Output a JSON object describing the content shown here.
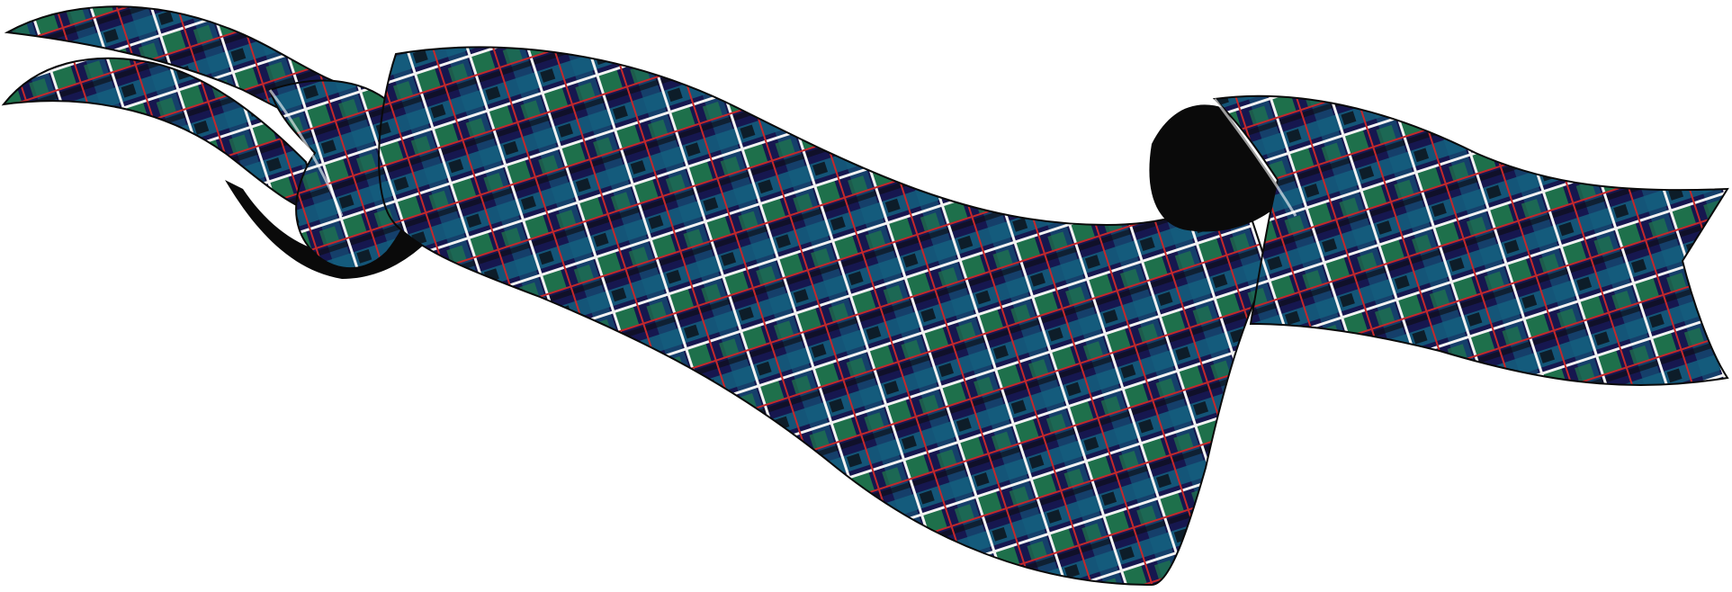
{
  "image": {
    "subject": "tartan-ribbon-banner",
    "background_color": "#ffffff",
    "tartan_colors": {
      "navy": "#16174f",
      "teal": "#14607f",
      "green": "#1f7a4a",
      "black": "#0b0b0f",
      "white_line": "#f2f2f2",
      "red_line": "#c3282b",
      "fold_shadow": "#0a0a0a"
    }
  }
}
